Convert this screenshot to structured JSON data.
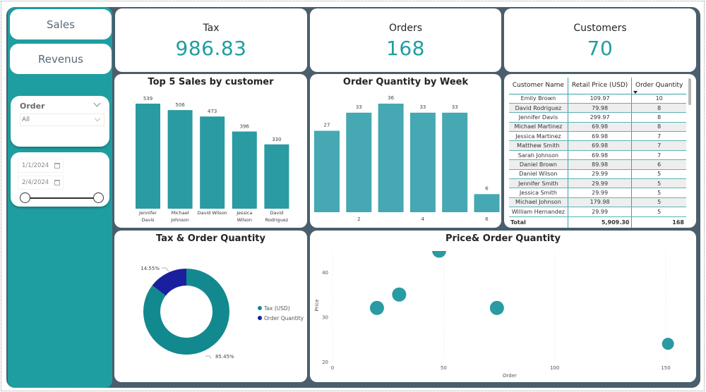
{
  "nav": {
    "sales_label": "Sales",
    "revenue_label": "Revenus"
  },
  "filters": {
    "order_slicer": {
      "title": "Order",
      "selected": "All"
    },
    "date_slicer": {
      "start": "1/1/2024",
      "end": "2/4/2024",
      "range_start_fraction": 0.0,
      "range_end_fraction": 1.0
    }
  },
  "kpis": [
    {
      "label": "Tax",
      "value": "986.83"
    },
    {
      "label": "Orders",
      "value": "168"
    },
    {
      "label": "Customers",
      "value": "70"
    }
  ],
  "colors": {
    "accent": "#1f9ea1",
    "bar_sales": "#2a9aa3",
    "bar_week": "#45a8b2",
    "donut_tax": "#12898f",
    "donut_orders": "#1a1f9e",
    "scatter": "#2a9aa3"
  },
  "table": {
    "columns": [
      "Customer Name",
      "Retail Price (USD)",
      "Order Quantity"
    ],
    "sorted_column": "Order Quantity",
    "sort_direction": "descending",
    "rows": [
      [
        "Emily Brown",
        "109.97",
        "10"
      ],
      [
        "David Rodriguez",
        "79.98",
        "8"
      ],
      [
        "Jennifer Davis",
        "299.97",
        "8"
      ],
      [
        "Michael Martinez",
        "69.98",
        "8"
      ],
      [
        "Jessica Martinez",
        "69.98",
        "7"
      ],
      [
        "Matthew Smith",
        "69.98",
        "7"
      ],
      [
        "Sarah Johnson",
        "69.98",
        "7"
      ],
      [
        "Daniel Brown",
        "89.98",
        "6"
      ],
      [
        "Daniel Wilson",
        "29.99",
        "5"
      ],
      [
        "Jennifer Smith",
        "29.99",
        "5"
      ],
      [
        "Jessica Smith",
        "29.99",
        "5"
      ],
      [
        "Michael Johnson",
        "179.98",
        "5"
      ],
      [
        "William Hernandez",
        "29.99",
        "5"
      ]
    ],
    "total": [
      "Total",
      "5,909.30",
      "168"
    ]
  },
  "chart_data": [
    {
      "id": "top5",
      "type": "bar",
      "title": "Top 5 Sales by customer",
      "categories": [
        [
          "Jennifer",
          "Davis"
        ],
        [
          "Michael",
          "Johnson"
        ],
        [
          "David Wilson"
        ],
        [
          "Jessica",
          "Wilson"
        ],
        [
          "David",
          "Rodriguez"
        ]
      ],
      "values": [
        539,
        506,
        473,
        396,
        330
      ],
      "xlabel": "",
      "ylabel": "",
      "data_labels": true,
      "ylim": [
        0,
        560
      ]
    },
    {
      "id": "week",
      "type": "bar",
      "title": "Order Quantity by Week",
      "categories": [
        "1",
        "2",
        "3",
        "4",
        "5",
        "6"
      ],
      "tick_labels": [
        "",
        "2",
        "",
        "4",
        "",
        "6"
      ],
      "values": [
        27,
        33,
        36,
        33,
        33,
        6
      ],
      "data_labels": true,
      "ylim": [
        0,
        38
      ]
    },
    {
      "id": "donut",
      "type": "pie",
      "title": "Tax & Order Quantity",
      "labels": [
        "Tax (USD)",
        "Order Quantity"
      ],
      "values": [
        85.45,
        14.55
      ],
      "value_labels": [
        "85.45%",
        "14.55%"
      ],
      "legend": "right"
    },
    {
      "id": "scatter",
      "type": "scatter",
      "title": "Price& Order Quantity",
      "xlabel": "Order",
      "ylabel": "Price",
      "xticks": [
        0,
        50,
        100,
        150
      ],
      "yticks": [
        20,
        30,
        40
      ],
      "xlim": [
        0,
        155
      ],
      "ylim": [
        20,
        44
      ],
      "points": [
        {
          "x": 20,
          "y": 32
        },
        {
          "x": 30,
          "y": 35
        },
        {
          "x": 48,
          "y": 44.8
        },
        {
          "x": 74,
          "y": 32
        },
        {
          "x": 151,
          "y": 24
        }
      ]
    }
  ]
}
